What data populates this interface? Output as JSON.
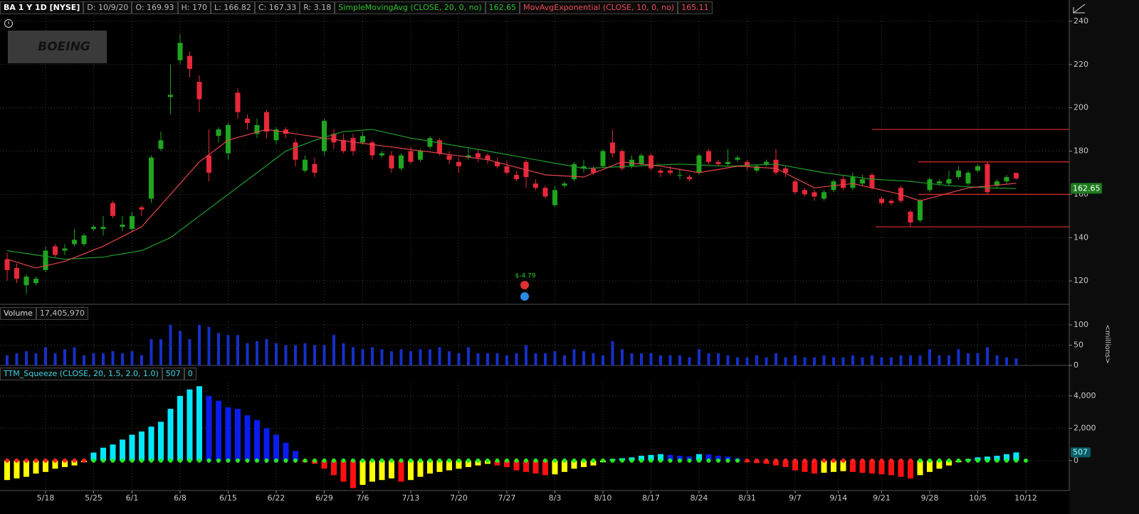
{
  "chart_data": [
    {
      "type": "candlestick",
      "title": "BA 1 Y 1D [NYSE]",
      "logo": "BOEING",
      "readouts": [
        "D: 10/9/20",
        "O: 169.93",
        "H: 170",
        "L: 166.82",
        "C: 167.33",
        "R: 3.18"
      ],
      "up_color": "#1fa51f",
      "down_color": "#e8283a",
      "open": [
        130,
        126,
        118,
        119,
        125,
        136,
        134,
        137,
        137,
        144,
        144,
        156,
        145,
        144,
        154,
        158,
        181,
        205,
        222,
        224,
        212,
        178,
        187,
        179,
        207,
        195,
        188,
        198,
        185,
        190,
        184,
        171,
        174,
        180,
        188,
        185,
        186,
        184,
        184,
        178,
        178,
        172,
        180,
        176,
        182,
        185,
        178,
        175,
        177,
        179,
        178,
        175,
        173,
        169,
        175,
        165,
        163,
        155,
        164,
        167,
        172,
        172,
        173,
        184,
        180,
        173,
        174,
        178,
        171,
        171,
        169,
        168,
        170,
        180,
        175,
        174,
        176,
        175,
        171,
        174,
        176,
        172,
        166,
        162,
        161,
        158,
        162,
        167,
        163,
        165,
        169,
        158,
        157,
        163,
        152,
        148,
        162,
        165,
        165,
        168,
        165,
        171,
        174,
        164,
        166,
        169.93
      ],
      "high": [
        133,
        128,
        123,
        122,
        136,
        137,
        137,
        144,
        142,
        146,
        150,
        157,
        150,
        152,
        155,
        178,
        189,
        220,
        234,
        226,
        215,
        190,
        191,
        193,
        209,
        197,
        195,
        199,
        191,
        191,
        186,
        178,
        177,
        195,
        190,
        188,
        188,
        189,
        185,
        180,
        180,
        179,
        182,
        181,
        187,
        186,
        180,
        177,
        181,
        181,
        179,
        177,
        176,
        171,
        176,
        167,
        164,
        164,
        166,
        175,
        176,
        173,
        181,
        190,
        181,
        178,
        179,
        179,
        172,
        173,
        172,
        169,
        179,
        181,
        176,
        181,
        178,
        176,
        174,
        176,
        181,
        173,
        167,
        163,
        162,
        162,
        167,
        169,
        170,
        169,
        170,
        159,
        158,
        164,
        153,
        158,
        168,
        167,
        171,
        173,
        171,
        174,
        175,
        167,
        169,
        170
      ],
      "low": [
        120,
        119,
        114,
        118,
        124,
        131,
        132,
        136,
        136,
        143,
        141,
        149,
        143,
        143,
        150,
        156,
        180,
        197,
        220,
        214,
        198,
        166,
        184,
        176,
        195,
        190,
        186,
        186,
        183,
        186,
        173,
        170,
        168,
        178,
        181,
        179,
        178,
        183,
        176,
        177,
        170,
        171,
        174,
        175,
        181,
        178,
        174,
        170,
        176,
        175,
        174,
        172,
        169,
        166,
        163,
        162,
        158,
        154,
        163,
        166,
        170,
        169,
        172,
        177,
        171,
        172,
        173,
        171,
        168,
        169,
        167,
        166,
        169,
        174,
        173,
        173,
        175,
        171,
        170,
        173,
        169,
        168,
        160,
        159,
        157,
        157,
        161,
        162,
        162,
        164,
        162,
        155,
        155,
        156,
        145,
        147,
        161,
        164,
        164,
        167,
        164,
        170,
        160,
        163,
        165,
        166.82
      ],
      "close": [
        125,
        121,
        122,
        121,
        134,
        132,
        135,
        139,
        141,
        145,
        145,
        150,
        146,
        150,
        153,
        177,
        185,
        206,
        230,
        218,
        204,
        170,
        190,
        192,
        198,
        193,
        192,
        189,
        190,
        188,
        176,
        176,
        170,
        194,
        184,
        180,
        180,
        187,
        178,
        179,
        172,
        178,
        175,
        180,
        186,
        179,
        176,
        173,
        178,
        177,
        176,
        173,
        170,
        167,
        168,
        163,
        159,
        162,
        165,
        174,
        173,
        170,
        180,
        179,
        172,
        176,
        178,
        172,
        170,
        170,
        169,
        167,
        178,
        175,
        174,
        175,
        177,
        173,
        173,
        175,
        170,
        170,
        161,
        160,
        159,
        161,
        166,
        163,
        168,
        167,
        163,
        156,
        156,
        157,
        147,
        157,
        167,
        166,
        167,
        171,
        170,
        173,
        161,
        166,
        168,
        167.33
      ],
      "lines": [
        {
          "name": "SimpleMovingAvg (CLOSE, 20, 0, no)",
          "value_label": "162.65",
          "color": "#1f9e2a",
          "values": [
            134,
            133.3,
            132.7,
            132,
            131.3,
            130.7,
            130,
            130.3,
            130.5,
            130.8,
            131,
            131.8,
            132.5,
            133.3,
            134,
            136,
            138,
            140,
            143.3,
            146.7,
            150,
            153.3,
            156.7,
            160,
            163.3,
            166.7,
            170,
            173.3,
            176.7,
            180,
            181.7,
            183.3,
            185,
            186.3,
            187.7,
            189,
            189.3,
            189.7,
            190,
            189,
            188,
            187,
            186,
            185.3,
            184.5,
            183.8,
            183,
            182.3,
            181.5,
            180.8,
            180,
            179.2,
            178.4,
            177.6,
            176.8,
            176,
            175.2,
            174.4,
            173.6,
            172.8,
            172,
            172.2,
            172.4,
            172.6,
            172.8,
            173,
            173.2,
            173.4,
            173.6,
            173.8,
            174,
            173.8,
            173.6,
            173.4,
            173.2,
            173,
            173.2,
            173.4,
            173.6,
            173.8,
            174,
            173.2,
            172.4,
            171.6,
            170.8,
            170,
            169.4,
            168.8,
            168.2,
            167.6,
            167,
            166.8,
            166.5,
            166.3,
            166,
            165.5,
            165,
            164.5,
            164,
            163.8,
            163.5,
            163.3,
            163,
            162.9,
            162.8,
            162.65
          ]
        },
        {
          "name": "MovAvgExponential (CLOSE, 10, 0, no)",
          "value_label": "165.11",
          "color": "#e8444e",
          "values": [
            130,
            128.7,
            127.3,
            126,
            127,
            128,
            129,
            130.8,
            132.5,
            134.3,
            136,
            138.3,
            140.5,
            142.8,
            145,
            150,
            155,
            160,
            165,
            170,
            175,
            178.3,
            181.7,
            185,
            186.3,
            187.5,
            188.8,
            190,
            189.3,
            188.7,
            188,
            187.3,
            186.7,
            186,
            185.4,
            184.8,
            184.2,
            183.6,
            183,
            182.4,
            181.9,
            181.3,
            180.7,
            180.1,
            179.6,
            179,
            178.4,
            177.8,
            177.2,
            176.6,
            176,
            174.8,
            173.7,
            172.5,
            171.3,
            170.2,
            169,
            168.8,
            168.5,
            168.3,
            168,
            169.8,
            171.5,
            173.3,
            175,
            174.5,
            174,
            173.5,
            173,
            172.3,
            171.5,
            170.8,
            170,
            170.8,
            171.5,
            172.3,
            173,
            172.8,
            172.5,
            172.3,
            172,
            169.8,
            167.5,
            165.3,
            163,
            163.5,
            164,
            164.5,
            165,
            164,
            163,
            162,
            161,
            160,
            158.5,
            157,
            158.2,
            159.4,
            160.6,
            161.8,
            163,
            163.4,
            163.8,
            164.3,
            164.7,
            165.11
          ]
        }
      ],
      "levels": {
        "color": "#e02a2a",
        "values": [
          190,
          175,
          160,
          145
        ]
      },
      "annotation": "$-4.79",
      "xlim": [
        -0.74,
        110.52
      ],
      "xticks": [
        {
          "value": 4,
          "label": "5/18"
        },
        {
          "value": 9,
          "label": "5/25"
        },
        {
          "value": 13,
          "label": "6/1"
        },
        {
          "value": 18,
          "label": "6/8"
        },
        {
          "value": 23,
          "label": "6/15"
        },
        {
          "value": 28,
          "label": "6/22"
        },
        {
          "value": 33,
          "label": "6/29"
        },
        {
          "value": 37,
          "label": "7/6"
        },
        {
          "value": 42,
          "label": "7/13"
        },
        {
          "value": 47,
          "label": "7/20"
        },
        {
          "value": 52,
          "label": "7/27"
        },
        {
          "value": 57,
          "label": "8/3"
        },
        {
          "value": 62,
          "label": "8/10"
        },
        {
          "value": 67,
          "label": "8/17"
        },
        {
          "value": 72,
          "label": "8/24"
        },
        {
          "value": 77,
          "label": "8/31"
        },
        {
          "value": 82,
          "label": "9/7"
        },
        {
          "value": 86.5,
          "label": "9/14"
        },
        {
          "value": 91,
          "label": "9/21"
        },
        {
          "value": 96,
          "label": "9/28"
        },
        {
          "value": 101,
          "label": "10/5"
        },
        {
          "value": 106,
          "label": "10/12"
        }
      ],
      "ylim": [
        109.2,
        242.6
      ],
      "yticks": [
        120,
        140,
        160,
        180,
        200,
        220,
        240
      ],
      "grid": true
    },
    {
      "type": "bar",
      "title": "Volume",
      "readouts": [
        "17,405,970"
      ],
      "color": "#1530c8",
      "axis_label": "<millions>",
      "values": [
        25,
        30,
        35,
        30,
        45,
        30,
        40,
        45,
        25,
        30,
        30,
        35,
        30,
        35,
        25,
        65,
        65,
        100,
        85,
        65,
        100,
        95,
        80,
        75,
        75,
        55,
        60,
        65,
        55,
        50,
        50,
        55,
        50,
        50,
        75,
        55,
        45,
        40,
        45,
        40,
        35,
        40,
        35,
        40,
        40,
        45,
        35,
        30,
        45,
        30,
        30,
        30,
        25,
        30,
        50,
        30,
        30,
        35,
        25,
        40,
        35,
        30,
        25,
        60,
        40,
        30,
        30,
        30,
        25,
        25,
        25,
        20,
        40,
        30,
        30,
        25,
        20,
        20,
        25,
        20,
        30,
        20,
        25,
        20,
        20,
        25,
        20,
        20,
        25,
        20,
        25,
        20,
        20,
        25,
        25,
        25,
        40,
        25,
        25,
        40,
        30,
        30,
        45,
        25,
        20,
        17.40597
      ],
      "ylim": [
        0,
        108.8
      ],
      "yticks": [
        0,
        50,
        100
      ],
      "grid": true
    },
    {
      "type": "squeeze",
      "title": "TTM_Squeeze (CLOSE, 20, 1.5, 2.0, 1.0)",
      "readouts": [
        "507",
        "0"
      ],
      "colors": {
        "positive_rising": "#00e8ff",
        "positive_falling": "#0a1cf0",
        "negative_falling": "#ff1010",
        "negative_rising": "#ffff00",
        "squeeze_on": "#ff2020",
        "squeeze_off": "#22ee22"
      },
      "values": [
        -1200,
        -1100,
        -1000,
        -800,
        -700,
        -500,
        -400,
        -300,
        -100,
        500,
        800,
        1000,
        1300,
        1600,
        1800,
        2100,
        2400,
        3200,
        4000,
        4400,
        4600,
        4000,
        3700,
        3300,
        3200,
        2800,
        2500,
        2000,
        1600,
        1100,
        600,
        -100,
        -200,
        -500,
        -900,
        -1300,
        -1700,
        -1500,
        -1300,
        -1200,
        -1100,
        -1300,
        -1200,
        -1000,
        -800,
        -700,
        -600,
        -500,
        -400,
        -300,
        -200,
        -300,
        -400,
        -600,
        -700,
        -800,
        -900,
        -850,
        -700,
        -500,
        -400,
        -300,
        -100,
        100,
        150,
        200,
        300,
        350,
        400,
        350,
        300,
        250,
        400,
        380,
        300,
        250,
        150,
        -100,
        -150,
        -200,
        -300,
        -400,
        -600,
        -700,
        -800,
        -750,
        -700,
        -650,
        -700,
        -750,
        -800,
        -850,
        -900,
        -1000,
        -1100,
        -900,
        -700,
        -500,
        -300,
        -100,
        100,
        200,
        250,
        300,
        400,
        507
      ],
      "squeeze": [
        1,
        1,
        1,
        1,
        1,
        1,
        1,
        1,
        1,
        0,
        0,
        0,
        0,
        0,
        0,
        0,
        0,
        0,
        0,
        0,
        0,
        0,
        0,
        0,
        0,
        0,
        0,
        0,
        0,
        0,
        0,
        0,
        0,
        0,
        0,
        0,
        0,
        0,
        0,
        0,
        0,
        0,
        0,
        0,
        0,
        0,
        0,
        0,
        0,
        0,
        0,
        0,
        0,
        0,
        0,
        0,
        0,
        0,
        0,
        0,
        0,
        0,
        0,
        0,
        0,
        0,
        0,
        0,
        0,
        0,
        0,
        0,
        0,
        0,
        0,
        0,
        0,
        1,
        1,
        1,
        1,
        1,
        1,
        1,
        1,
        1,
        1,
        1,
        1,
        1,
        1,
        1,
        1,
        1,
        1,
        0,
        0,
        0,
        0,
        0,
        0,
        0,
        0,
        0,
        0,
        0,
        0
      ],
      "ylim": [
        -1850,
        4830
      ],
      "yticks": [
        {
          "value": 0,
          "label": "0"
        },
        {
          "value": 2000,
          "label": "2,000"
        },
        {
          "value": 4000,
          "label": "4,000"
        }
      ],
      "grid": true
    }
  ]
}
